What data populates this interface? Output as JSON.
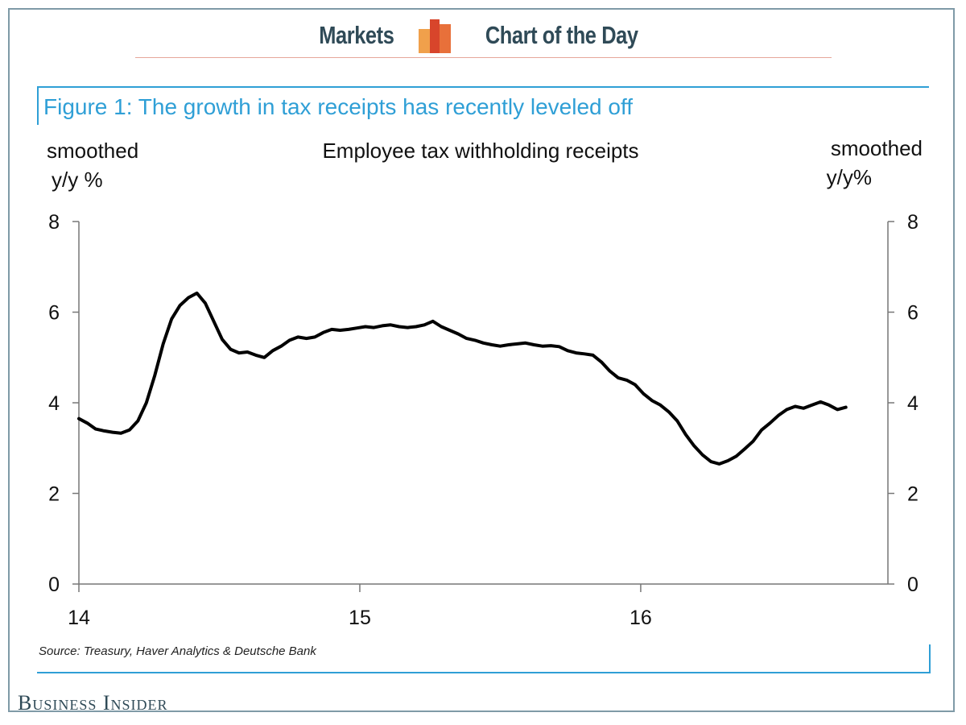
{
  "header": {
    "left_label": "Markets",
    "right_label": "Chart of the Day",
    "logo_colors": [
      "#f0a04b",
      "#e8703a",
      "#d8452b"
    ]
  },
  "figure_title": "Figure 1: The growth in tax receipts has recently leveled off",
  "source": "Source: Treasury, Haver Analytics & Deutsche Bank",
  "brand": "Business Insider",
  "colors": {
    "accent": "#2f9fd6",
    "header_text": "#2f4a57",
    "line": "#000000"
  },
  "chart_data": {
    "type": "line",
    "title": "Employee tax withholding receipts",
    "ylabel_left": [
      "smoothed",
      "y/y %"
    ],
    "ylabel_right": [
      "smoothed",
      "y/y%"
    ],
    "xlim": [
      14.0,
      16.88
    ],
    "ylim": [
      0,
      8
    ],
    "x_ticks": [
      14,
      15,
      16
    ],
    "x_tick_labels": [
      "14",
      "15",
      "16"
    ],
    "y_ticks": [
      0,
      2,
      4,
      6,
      8
    ],
    "y_tick_labels": [
      "0",
      "2",
      "4",
      "6",
      "8"
    ],
    "grid": false,
    "legend": "none",
    "series": [
      {
        "x": [
          14.0,
          14.03,
          14.06,
          14.09,
          14.12,
          14.15,
          14.18,
          14.21,
          14.24,
          14.27,
          14.3,
          14.33,
          14.36,
          14.39,
          14.42,
          14.45,
          14.48,
          14.51,
          14.54,
          14.57,
          14.6,
          14.63,
          14.66,
          14.69,
          14.72,
          14.75,
          14.78,
          14.81,
          14.84,
          14.87,
          14.9,
          14.93,
          14.96,
          14.99,
          15.02,
          15.05,
          15.08,
          15.11,
          15.14,
          15.17,
          15.2,
          15.23,
          15.26,
          15.29,
          15.32,
          15.35,
          15.38,
          15.41,
          15.44,
          15.47,
          15.5,
          15.53,
          15.56,
          15.59,
          15.62,
          15.65,
          15.68,
          15.71,
          15.74,
          15.77,
          15.8,
          15.83,
          15.86,
          15.89,
          15.92,
          15.95,
          15.98,
          16.01,
          16.04,
          16.07,
          16.1,
          16.13,
          16.16,
          16.19,
          16.22,
          16.25,
          16.28,
          16.31,
          16.34,
          16.37,
          16.4,
          16.43,
          16.46,
          16.49,
          16.52,
          16.55,
          16.58,
          16.61,
          16.64,
          16.67,
          16.7,
          16.73
        ],
        "y": [
          3.65,
          3.55,
          3.42,
          3.38,
          3.35,
          3.33,
          3.4,
          3.6,
          4.0,
          4.6,
          5.3,
          5.85,
          6.15,
          6.32,
          6.42,
          6.2,
          5.8,
          5.4,
          5.18,
          5.1,
          5.12,
          5.05,
          5.0,
          5.15,
          5.25,
          5.38,
          5.45,
          5.42,
          5.45,
          5.55,
          5.62,
          5.6,
          5.62,
          5.65,
          5.68,
          5.66,
          5.7,
          5.72,
          5.68,
          5.66,
          5.68,
          5.72,
          5.8,
          5.68,
          5.6,
          5.52,
          5.42,
          5.38,
          5.32,
          5.28,
          5.25,
          5.28,
          5.3,
          5.32,
          5.28,
          5.25,
          5.26,
          5.24,
          5.15,
          5.1,
          5.08,
          5.05,
          4.9,
          4.7,
          4.55,
          4.5,
          4.4,
          4.2,
          4.05,
          3.95,
          3.8,
          3.6,
          3.3,
          3.05,
          2.85,
          2.7,
          2.65,
          2.72,
          2.82,
          2.98,
          3.15,
          3.4,
          3.55,
          3.72,
          3.85,
          3.92,
          3.88,
          3.95,
          4.02,
          3.95,
          3.85,
          3.9
        ]
      }
    ]
  }
}
